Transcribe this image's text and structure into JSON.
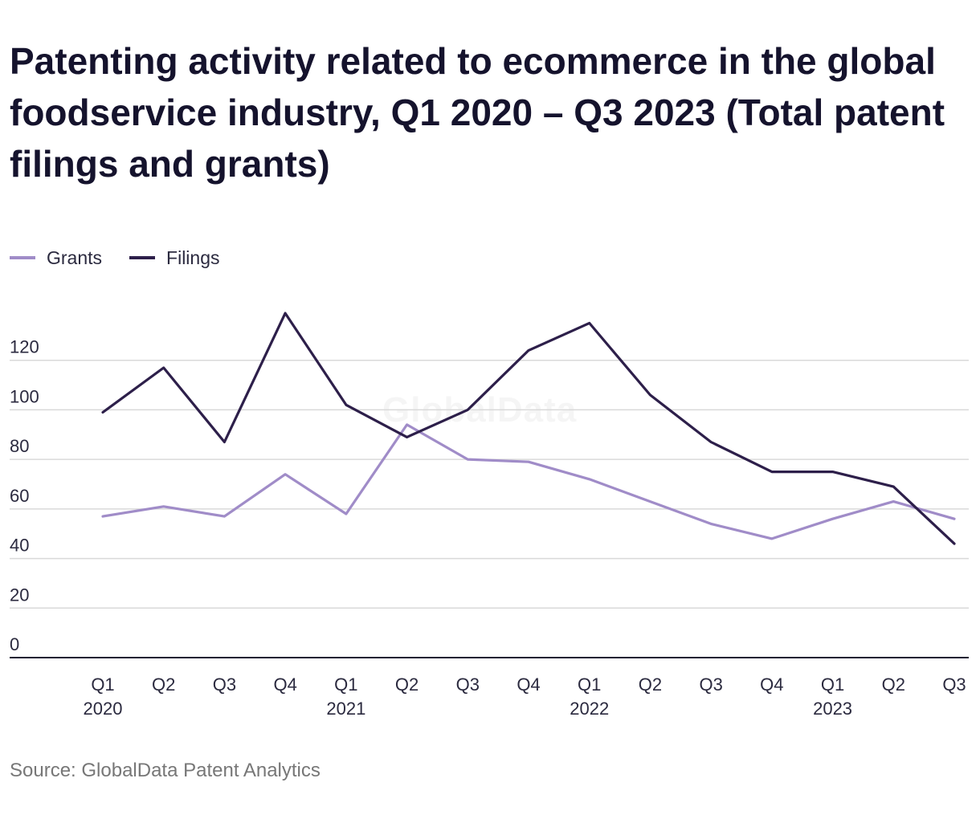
{
  "chart_data": {
    "type": "line",
    "title": "Patenting activity related to ecommerce in the global foodservice industry, Q1 2020 – Q3 2023 (Total patent filings and grants)",
    "source": "Source: GlobalData Patent Analytics",
    "watermark": "GlobalData",
    "categories": [
      "Q1 2020",
      "Q2 2020",
      "Q3 2020",
      "Q4 2020",
      "Q1 2021",
      "Q2 2021",
      "Q3 2021",
      "Q4 2021",
      "Q1 2022",
      "Q2 2022",
      "Q3 2022",
      "Q4 2022",
      "Q1 2023",
      "Q2 2023",
      "Q3 2023"
    ],
    "tick_quarters": [
      "Q1",
      "Q2",
      "Q3",
      "Q4",
      "Q1",
      "Q2",
      "Q3",
      "Q4",
      "Q1",
      "Q2",
      "Q3",
      "Q4",
      "Q1",
      "Q2",
      "Q3"
    ],
    "tick_years": [
      "2020",
      "",
      "",
      "",
      "2021",
      "",
      "",
      "",
      "2022",
      "",
      "",
      "",
      "2023",
      "",
      ""
    ],
    "series": [
      {
        "name": "Grants",
        "color": "#a08cc8",
        "values": [
          57,
          61,
          57,
          74,
          58,
          94,
          80,
          79,
          72,
          63,
          54,
          48,
          56,
          63,
          56
        ]
      },
      {
        "name": "Filings",
        "color": "#2d1f4a",
        "values": [
          99,
          117,
          87,
          139,
          102,
          89,
          100,
          124,
          135,
          106,
          87,
          75,
          75,
          69,
          46
        ]
      }
    ],
    "ylim": [
      0,
      140
    ],
    "yticks": [
      0,
      20,
      40,
      60,
      80,
      100,
      120
    ],
    "grid": true,
    "legend_position": "top-left",
    "xlabel": "",
    "ylabel": ""
  }
}
